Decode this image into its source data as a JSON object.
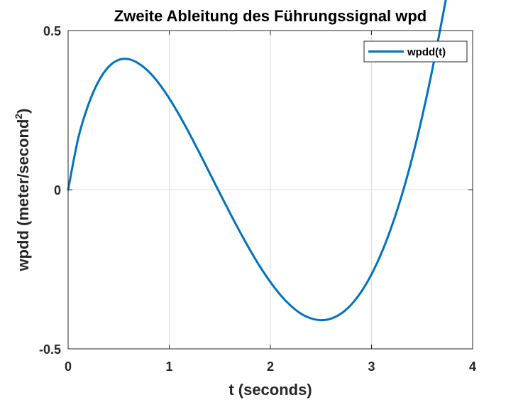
{
  "chart_data": {
    "type": "line",
    "title": "Zweite Ableitung des Führungssignal wpd",
    "xlabel": "t (seconds)",
    "ylabel_main": "wpdd (meter/second",
    "ylabel_sup": "2",
    "ylabel_close": ")",
    "xlim": [
      0,
      4
    ],
    "ylim": [
      -0.5,
      0.5
    ],
    "xticks": [
      0,
      1,
      2,
      3,
      4
    ],
    "xtick_labels": [
      "0",
      "1",
      "2",
      "3",
      "4"
    ],
    "yticks": [
      -0.5,
      0,
      0.5
    ],
    "ytick_labels": [
      "-0.5",
      "0",
      "0.5"
    ],
    "grid": true,
    "legend_position": "top-right",
    "series": [
      {
        "name": "wpdd(t)",
        "color": "#0072BD",
        "x": [
          0,
          0.1,
          0.2,
          0.3,
          0.4,
          0.5,
          0.6,
          0.7,
          0.8,
          0.9,
          1.0,
          1.1,
          1.2,
          1.3,
          1.4,
          1.5,
          1.6,
          1.7,
          1.8,
          1.9,
          2.0,
          2.1,
          2.2,
          2.3,
          2.4,
          2.5,
          2.6,
          2.7,
          2.8,
          2.9,
          3.0,
          3.1,
          3.2,
          3.3,
          3.4,
          3.5,
          3.6,
          3.7,
          3.74
        ],
        "y": [
          0,
          0.162,
          0.267,
          0.34,
          0.386,
          0.408,
          0.41,
          0.396,
          0.37,
          0.333,
          0.287,
          0.234,
          0.176,
          0.115,
          0.052,
          -0.011,
          -0.073,
          -0.133,
          -0.19,
          -0.243,
          -0.29,
          -0.331,
          -0.364,
          -0.389,
          -0.404,
          -0.41,
          -0.405,
          -0.389,
          -0.361,
          -0.32,
          -0.266,
          -0.198,
          -0.115,
          -0.017,
          0.097,
          0.228,
          0.375,
          0.538,
          0.605
        ]
      }
    ]
  }
}
